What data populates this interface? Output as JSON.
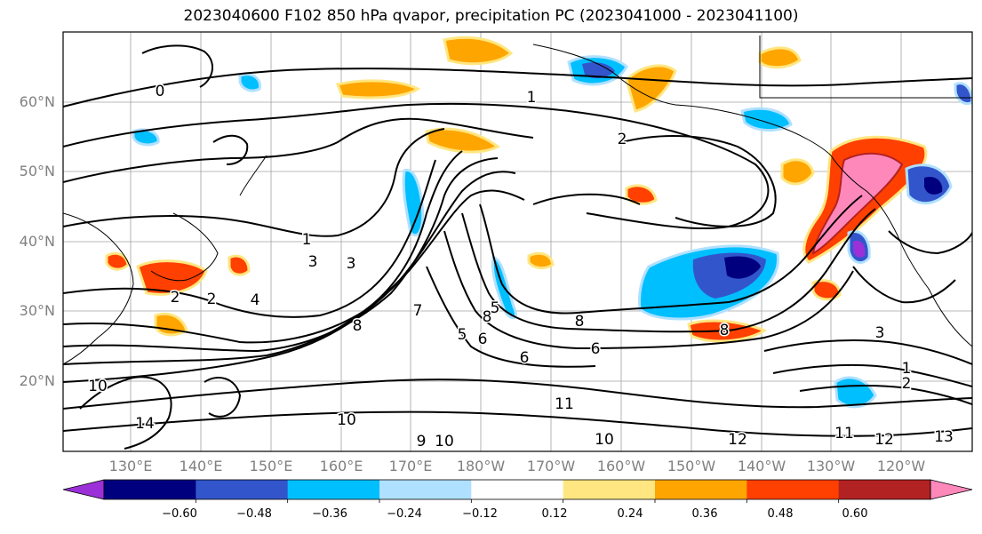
{
  "title": "2023040600 F102 850 hPa qvapor, precipitation PC (2023041000 - 2023041100)",
  "lat_labels": [
    "60°N",
    "50°N",
    "40°N",
    "30°N",
    "20°N"
  ],
  "lon_labels": [
    "130°E",
    "140°E",
    "150°E",
    "160°E",
    "170°E",
    "180°W",
    "170°W",
    "160°W",
    "150°W",
    "140°W",
    "130°W",
    "120°W"
  ],
  "contour_labels": [
    "0",
    "1",
    "1",
    "2",
    "2",
    "3",
    "3",
    "4",
    "5",
    "6",
    "6",
    "7",
    "8",
    "8",
    "8",
    "9",
    "10",
    "10",
    "11",
    "11",
    "12",
    "12",
    "13",
    "14",
    "1",
    "2",
    "3",
    "2",
    "10",
    "10",
    "6",
    "8",
    "5"
  ],
  "colorbar": {
    "ticks": [
      "−0.60",
      "−0.48",
      "−0.36",
      "−0.24",
      "−0.12",
      "0.12",
      "0.24",
      "0.36",
      "0.48",
      "0.60"
    ],
    "colors": [
      "#9b30d8",
      "#00007f",
      "#3355cc",
      "#00bfff",
      "#b0e0ff",
      "#ffffff",
      "#ffe680",
      "#ffa500",
      "#ff4000",
      "#b22222",
      "#ff88bb"
    ]
  }
}
